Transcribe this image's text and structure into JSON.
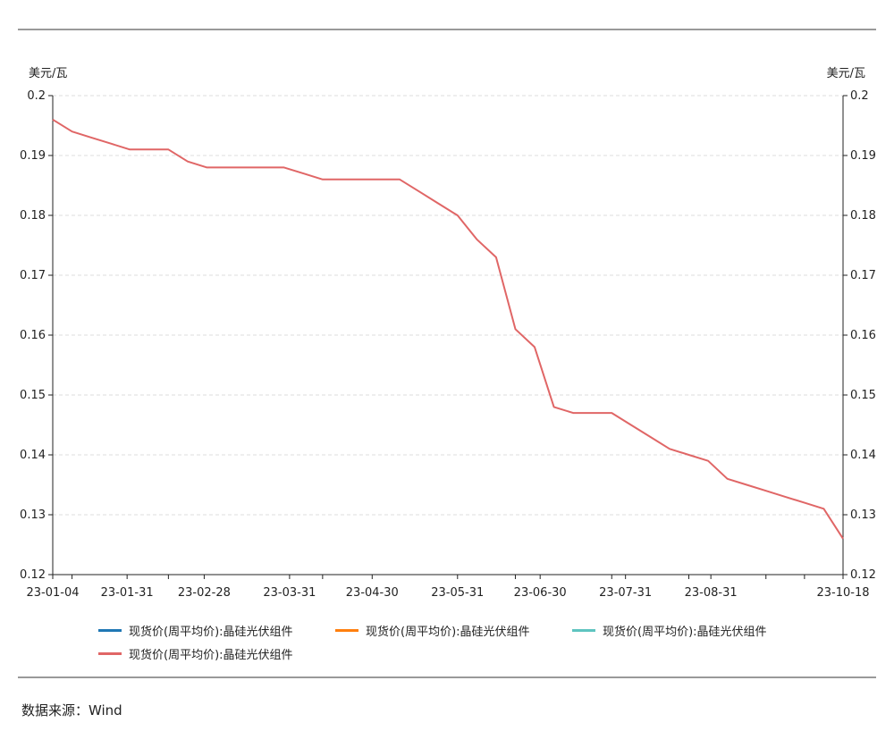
{
  "chart_data": {
    "type": "line",
    "left_unit": "美元/瓦",
    "right_unit": "美元/瓦",
    "ylim": [
      0.12,
      0.2
    ],
    "y_ticks": [
      "0.2",
      "0.19",
      "0.18",
      "0.17",
      "0.16",
      "0.15",
      "0.14",
      "0.13",
      "0.12"
    ],
    "x_labels": [
      "23-01-04",
      "23-01-31",
      "23-02-28",
      "23-03-31",
      "23-04-30",
      "23-05-31",
      "23-06-30",
      "23-07-31",
      "23-08-31",
      "23-10-18"
    ],
    "grid": "horizontal dashed",
    "series": [
      {
        "name": "现货价(周平均价):晶硅光伏组件",
        "color": "#1f77b4",
        "values": []
      },
      {
        "name": "现货价(周平均价):晶硅光伏组件",
        "color": "#ff7f0e",
        "values": []
      },
      {
        "name": "现货价(周平均价):晶硅光伏组件",
        "color": "#5ec4c0",
        "values": []
      },
      {
        "name": "现货价(周平均价):晶硅光伏组件",
        "color": "#e06666",
        "x": [
          "2023-01-04",
          "2023-01-11",
          "2023-01-18",
          "2023-01-25",
          "2023-02-01",
          "2023-02-08",
          "2023-02-15",
          "2023-02-22",
          "2023-03-01",
          "2023-03-08",
          "2023-03-15",
          "2023-03-22",
          "2023-03-29",
          "2023-04-05",
          "2023-04-12",
          "2023-04-19",
          "2023-04-26",
          "2023-05-03",
          "2023-05-10",
          "2023-05-17",
          "2023-05-24",
          "2023-05-31",
          "2023-06-07",
          "2023-06-14",
          "2023-06-21",
          "2023-06-28",
          "2023-07-05",
          "2023-07-12",
          "2023-07-19",
          "2023-07-26",
          "2023-08-02",
          "2023-08-09",
          "2023-08-16",
          "2023-08-23",
          "2023-08-30",
          "2023-09-06",
          "2023-09-13",
          "2023-09-20",
          "2023-09-27",
          "2023-10-04",
          "2023-10-11",
          "2023-10-18"
        ],
        "values": [
          0.196,
          0.194,
          0.193,
          0.192,
          0.191,
          0.191,
          0.191,
          0.189,
          0.188,
          0.188,
          0.188,
          0.188,
          0.188,
          0.187,
          0.186,
          0.186,
          0.186,
          0.186,
          0.186,
          0.184,
          0.182,
          0.18,
          0.176,
          0.173,
          0.161,
          0.158,
          0.148,
          0.147,
          0.147,
          0.147,
          0.145,
          0.143,
          0.141,
          0.14,
          0.139,
          0.136,
          0.135,
          0.134,
          0.133,
          0.132,
          0.131,
          0.126
        ]
      }
    ]
  },
  "legend": {
    "item1": "现货价(周平均价):晶硅光伏组件",
    "item2": "现货价(周平均价):晶硅光伏组件",
    "item3": "现货价(周平均价):晶硅光伏组件",
    "item4": "现货价(周平均价):晶硅光伏组件"
  },
  "source": "数据来源：Wind"
}
